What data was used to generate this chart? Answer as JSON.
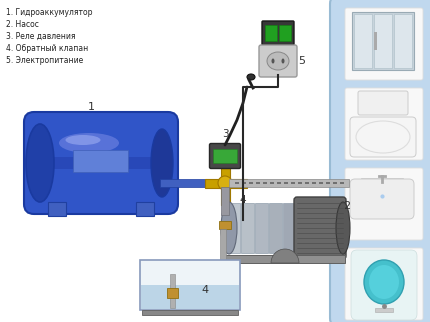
{
  "background_color": "#ffffff",
  "legend_lines": [
    "1. Гидроаккумулятор",
    "2. Насос",
    "3. Реле давления",
    "4. Обратный клапан",
    "5. Электропитание"
  ],
  "right_panel_color": "#c0d8ee",
  "right_panel_edge": "#99bbd4",
  "tank_blue_dark": "#1a3aa0",
  "tank_blue_mid": "#3055c8",
  "tank_blue_light": "#5070e0",
  "tank_highlight": "#8090e8",
  "tank_shine": "#c0ccff",
  "figsize": [
    4.3,
    3.22
  ],
  "dpi": 100
}
